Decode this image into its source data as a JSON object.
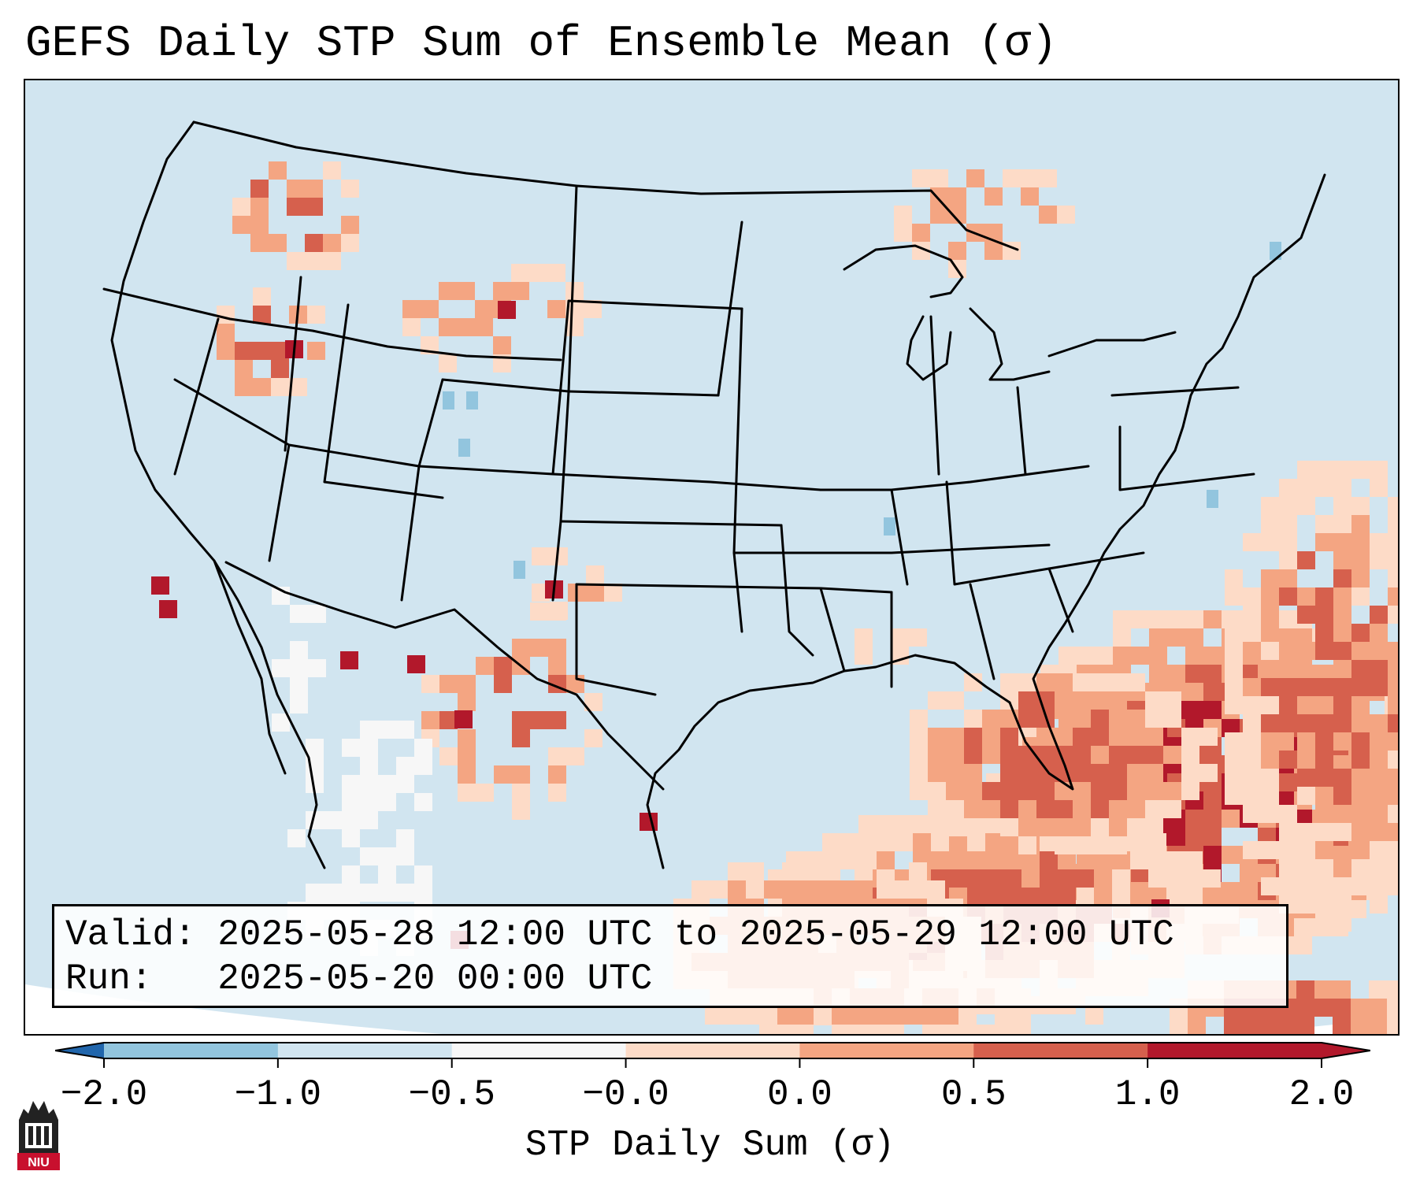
{
  "title": "GEFS Daily STP Sum of Ensemble Mean (σ)",
  "info": {
    "valid_label": "Valid:",
    "valid_value": "2025-05-28 12:00 UTC to 2025-05-29 12:00 UTC",
    "run_label": "Run:  ",
    "run_value": "2025-05-20 00:00 UTC"
  },
  "colorbar": {
    "label": "STP Daily Sum (σ)",
    "ticks": [
      "−2.0",
      "−1.0",
      "−0.5",
      "−0.0",
      "0.0",
      "0.5",
      "1.0",
      "2.0"
    ],
    "colors": [
      "#4393c3",
      "#92c5de",
      "#d1e5f0",
      "#f7f7f7",
      "#fddbc7",
      "#f4a582",
      "#d6604d",
      "#b2182b"
    ],
    "under_color": "#2166ac",
    "over_color": "#b2182b",
    "extend": "both"
  },
  "map": {
    "background_color": "#d1e5f0",
    "outside_color": "#ffffff",
    "line_color": "#000000",
    "icon": "conus-state-boundary-map"
  },
  "logo": {
    "icon": "niu-logo",
    "text": "NIU"
  }
}
